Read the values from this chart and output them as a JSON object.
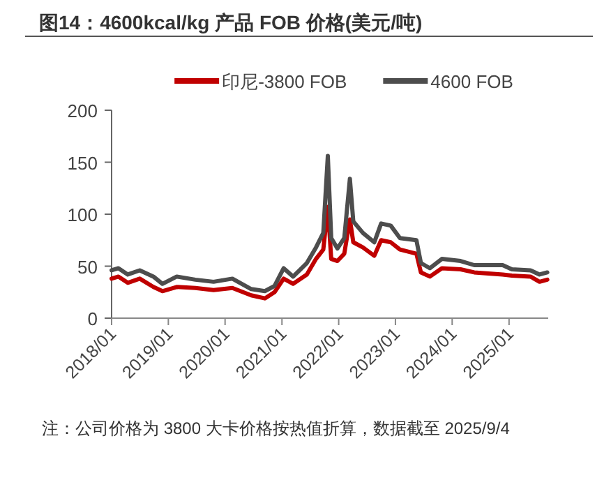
{
  "chart_data": {
    "type": "line",
    "title": "图14：4600kcal/kg 产品 FOB 价格(美元/吨)",
    "x": [
      "2018-01-01",
      "2018-02-14",
      "2018-04-15",
      "2018-07-01",
      "2018-09-27",
      "2018-11-24",
      "2019-02-24",
      "2019-06-24",
      "2019-10-19",
      "2020-02-17",
      "2020-06-17",
      "2020-09-13",
      "2020-11-14",
      "2021-01-12",
      "2021-03-14",
      "2021-06-10",
      "2021-08-08",
      "2021-09-24",
      "2021-10-23",
      "2021-11-14",
      "2021-12-24",
      "2022-02-06",
      "2022-03-14",
      "2022-04-05",
      "2022-06-06",
      "2022-08-18",
      "2022-10-01",
      "2022-12-02",
      "2023-01-30",
      "2023-05-16",
      "2023-06-14",
      "2023-08-11",
      "2023-10-27",
      "2024-02-24",
      "2024-05-22",
      "2024-11-21",
      "2025-01-19",
      "2025-05-19",
      "2025-07-16",
      "2025-09-04"
    ],
    "series": [
      {
        "name": "印尼-3800 FOB",
        "color": "#c00000",
        "values": [
          38,
          40,
          34,
          38,
          30,
          26,
          30,
          29,
          27,
          29,
          22,
          19,
          25,
          38,
          33,
          42,
          57,
          66,
          107,
          57,
          55,
          62,
          95,
          73,
          68,
          60,
          75,
          73,
          66,
          62,
          44,
          40,
          48,
          47,
          44,
          42,
          41,
          40,
          35,
          37
        ]
      },
      {
        "name": "4600 FOB",
        "color": "#4d4d4d",
        "values": [
          46,
          48,
          42,
          46,
          40,
          33,
          40,
          37,
          35,
          38,
          28,
          26,
          31,
          48,
          40,
          53,
          68,
          82,
          156,
          77,
          67,
          77,
          134,
          93,
          82,
          73,
          91,
          89,
          77,
          75,
          53,
          48,
          57,
          55,
          51,
          51,
          47,
          46,
          42,
          44
        ]
      }
    ],
    "xlim": [
      "2018-01-01",
      "2025-09-10"
    ],
    "xticks": [
      {
        "value": "2018-01-01",
        "label": "2018/01"
      },
      {
        "value": "2019-01-01",
        "label": "2019/01"
      },
      {
        "value": "2020-01-01",
        "label": "2020/01"
      },
      {
        "value": "2021-01-01",
        "label": "2021/01"
      },
      {
        "value": "2022-01-01",
        "label": "2022/01"
      },
      {
        "value": "2023-01-01",
        "label": "2023/01"
      },
      {
        "value": "2024-01-01",
        "label": "2024/01"
      },
      {
        "value": "2025-01-01",
        "label": "2025/01"
      }
    ],
    "ylim": [
      0,
      200
    ],
    "yticks": [
      0,
      50,
      100,
      150,
      200
    ],
    "legend": "top",
    "grid": false,
    "annotations": [
      "注：公司价格为 3800 大卡价格按热值折算，数据截至 2025/9/4"
    ]
  }
}
